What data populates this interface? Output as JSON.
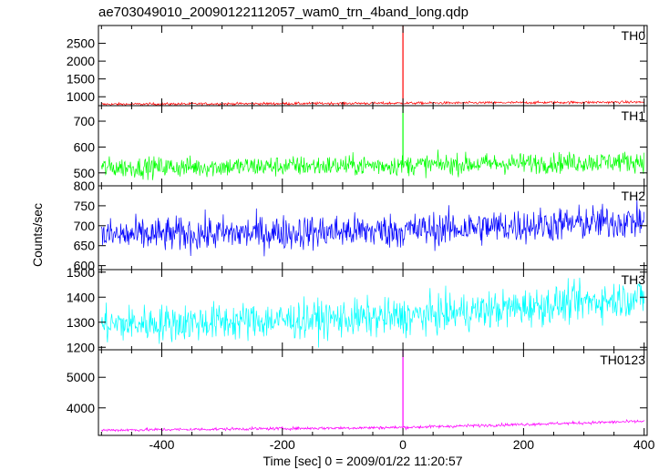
{
  "title": "ae703049010_20090122112057_wam0_trn_4band_long.qdp",
  "ylabel": "Counts/sec",
  "xlabel": "Time [sec] 0 = 2009/01/22 11:20:57",
  "chart_data": {
    "type": "line",
    "title": "ae703049010_20090122112057_wam0_trn_4band_long.qdp",
    "xlabel": "Time [sec] 0 = 2009/01/22 11:20:57",
    "ylabel": "Counts/sec",
    "xlim": [
      -505,
      405
    ],
    "xticks": [
      -400,
      -200,
      0,
      200,
      400
    ],
    "grid": false,
    "panels": [
      {
        "name": "TH0",
        "color": "#ff0000",
        "ylim": [
          750,
          3000
        ],
        "yticks": [
          1000,
          1500,
          2000,
          2500
        ],
        "baseline": [
          [
            -500,
            790
          ],
          [
            0,
            820
          ],
          [
            400,
            850
          ]
        ],
        "noise": 18,
        "spike": {
          "x": 0,
          "y": 3000
        }
      },
      {
        "name": "TH1",
        "color": "#00ff00",
        "ylim": [
          450,
          760
        ],
        "yticks": [
          500,
          600,
          700
        ],
        "baseline": [
          [
            -500,
            520
          ],
          [
            0,
            530
          ],
          [
            400,
            545
          ]
        ],
        "noise": 20,
        "spike": {
          "x": 0,
          "y": 760
        }
      },
      {
        "name": "TH2",
        "color": "#0000ff",
        "ylim": [
          590,
          800
        ],
        "yticks": [
          600,
          650,
          700,
          750,
          800
        ],
        "baseline": [
          [
            -500,
            675
          ],
          [
            0,
            688
          ],
          [
            400,
            712
          ]
        ],
        "noise": 22
      },
      {
        "name": "TH3",
        "color": "#00ffff",
        "ylim": [
          1190,
          1510
        ],
        "yticks": [
          1200,
          1300,
          1400,
          1500
        ],
        "baseline": [
          [
            -500,
            1290
          ],
          [
            0,
            1320
          ],
          [
            400,
            1400
          ]
        ],
        "noise": 38
      },
      {
        "name": "TH0123",
        "color": "#ff00ff",
        "ylim": [
          3100,
          5900
        ],
        "yticks": [
          4000,
          5000
        ],
        "baseline": [
          [
            -500,
            3270
          ],
          [
            0,
            3360
          ],
          [
            400,
            3560
          ]
        ],
        "noise": 25,
        "spike": {
          "x": 0,
          "y": 5900
        }
      }
    ]
  }
}
